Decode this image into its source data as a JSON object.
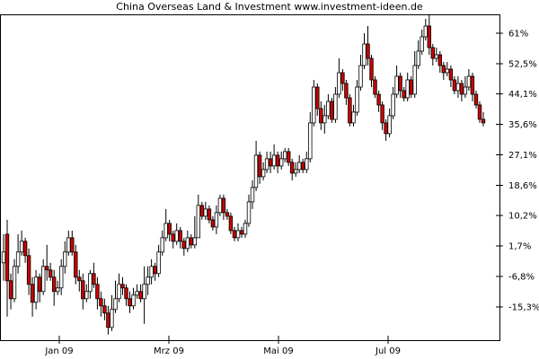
{
  "chart_data": {
    "type": "candlestick",
    "title": "China Overseas Land & Investment www.investment-ideen.de",
    "xlabel": "",
    "ylabel": "",
    "x_ticks": [
      "Jan 09",
      "Mrz 09",
      "Mai 09",
      "Jul 09"
    ],
    "y_ticks": [
      "61%",
      "52,5%",
      "44,1%",
      "35,6%",
      "27,1%",
      "18,6%",
      "10,2%",
      "1,7%",
      "-6,8%",
      "-15,3%"
    ],
    "y_tick_values": [
      61,
      52.5,
      44.1,
      35.6,
      27.1,
      18.6,
      10.2,
      1.7,
      -6.8,
      -15.3
    ],
    "ylim": [
      -23.5,
      66.5
    ],
    "grid": false,
    "series_colors": {
      "down": "#cc0000",
      "up": "#ffffff",
      "outline": "#000000"
    },
    "candles": [
      [
        0.0,
        -3.0,
        5.0,
        -8.0,
        true
      ],
      [
        5.0,
        -8.0,
        9.0,
        -18.0,
        false
      ],
      [
        -8.0,
        -13.0,
        -6.0,
        -16.0,
        false
      ],
      [
        -13.0,
        -4.0,
        -2.0,
        -14.0,
        true
      ],
      [
        -4.0,
        0.0,
        5.0,
        -6.0,
        true
      ],
      [
        0.0,
        3.0,
        6.0,
        -1.0,
        true
      ],
      [
        3.0,
        -1.0,
        4.0,
        -3.0,
        false
      ],
      [
        -1.0,
        -9.0,
        1.0,
        -12.0,
        false
      ],
      [
        -9.0,
        -14.0,
        -7.0,
        -18.0,
        false
      ],
      [
        -14.0,
        -7.0,
        -5.0,
        -16.0,
        true
      ],
      [
        -7.0,
        -11.0,
        -6.0,
        -14.0,
        false
      ],
      [
        -11.0,
        -4.0,
        -2.0,
        -12.0,
        true
      ],
      [
        -4.0,
        -5.0,
        2.0,
        -8.0,
        false
      ],
      [
        -5.0,
        -7.0,
        -3.0,
        -8.0,
        false
      ],
      [
        -7.0,
        -11.0,
        -5.0,
        -15.0,
        false
      ],
      [
        -11.0,
        -10.0,
        -8.0,
        -12.0,
        true
      ],
      [
        -10.0,
        -4.0,
        -2.0,
        -12.0,
        true
      ],
      [
        -4.0,
        0.0,
        3.0,
        -6.0,
        true
      ],
      [
        0.0,
        4.0,
        6.0,
        -1.0,
        true
      ],
      [
        4.0,
        0.0,
        6.0,
        -1.0,
        false
      ],
      [
        0.0,
        -7.0,
        2.0,
        -9.0,
        false
      ],
      [
        -7.0,
        -8.0,
        -5.0,
        -11.0,
        false
      ],
      [
        -8.0,
        -13.0,
        -6.0,
        -16.0,
        false
      ],
      [
        -13.0,
        -11.0,
        -9.0,
        -14.0,
        true
      ],
      [
        -11.0,
        -6.0,
        -5.0,
        -13.0,
        true
      ],
      [
        -6.0,
        -9.0,
        -3.0,
        -10.0,
        false
      ],
      [
        -9.0,
        -13.0,
        -7.0,
        -16.0,
        false
      ],
      [
        -13.0,
        -15.0,
        -11.0,
        -18.0,
        false
      ],
      [
        -15.0,
        -17.0,
        -13.0,
        -19.0,
        false
      ],
      [
        -17.0,
        -21.0,
        -15.0,
        -23.0,
        false
      ],
      [
        -21.0,
        -16.0,
        -12.0,
        -22.0,
        true
      ],
      [
        -16.0,
        -13.0,
        -8.0,
        -17.0,
        true
      ],
      [
        -13.0,
        -9.0,
        -6.0,
        -14.0,
        true
      ],
      [
        -9.0,
        -10.0,
        -7.0,
        -12.0,
        false
      ],
      [
        -10.0,
        -13.0,
        -9.0,
        -15.0,
        false
      ],
      [
        -13.0,
        -15.0,
        -11.0,
        -17.0,
        false
      ],
      [
        -15.0,
        -12.0,
        -10.0,
        -16.0,
        true
      ],
      [
        -12.0,
        -11.0,
        -9.0,
        -13.0,
        true
      ],
      [
        -11.0,
        -13.0,
        -9.0,
        -14.0,
        false
      ],
      [
        -13.0,
        -9.0,
        -4.0,
        -20.0,
        true
      ],
      [
        -9.0,
        -7.0,
        -4.0,
        -12.0,
        true
      ],
      [
        -7.0,
        -4.0,
        -2.0,
        -9.0,
        true
      ],
      [
        -4.0,
        -6.0,
        -3.0,
        -8.0,
        false
      ],
      [
        -6.0,
        0.0,
        2.0,
        -7.0,
        true
      ],
      [
        0.0,
        4.0,
        6.0,
        -1.0,
        true
      ],
      [
        4.0,
        8.0,
        12.0,
        3.0,
        true
      ],
      [
        8.0,
        5.0,
        9.0,
        3.0,
        false
      ],
      [
        5.0,
        3.0,
        6.0,
        1.0,
        false
      ],
      [
        3.0,
        6.0,
        8.0,
        2.0,
        true
      ],
      [
        6.0,
        3.0,
        7.0,
        1.0,
        false
      ],
      [
        3.0,
        1.0,
        4.0,
        -1.0,
        false
      ],
      [
        1.0,
        4.0,
        6.0,
        0.0,
        true
      ],
      [
        4.0,
        2.0,
        5.0,
        1.0,
        false
      ],
      [
        2.0,
        4.0,
        10.0,
        1.0,
        true
      ],
      [
        4.0,
        13.0,
        16.0,
        4.0,
        true
      ],
      [
        13.0,
        10.0,
        14.0,
        9.0,
        false
      ],
      [
        10.0,
        12.0,
        14.0,
        9.0,
        true
      ],
      [
        12.0,
        9.0,
        13.0,
        8.0,
        false
      ],
      [
        9.0,
        7.0,
        10.0,
        6.0,
        false
      ],
      [
        7.0,
        11.0,
        13.0,
        5.0,
        true
      ],
      [
        11.0,
        15.0,
        16.0,
        10.0,
        true
      ],
      [
        15.0,
        11.0,
        16.0,
        9.0,
        false
      ],
      [
        11.0,
        10.0,
        12.0,
        9.0,
        false
      ],
      [
        10.0,
        6.0,
        11.0,
        5.0,
        false
      ],
      [
        6.0,
        4.0,
        7.0,
        3.0,
        false
      ],
      [
        4.0,
        6.0,
        8.0,
        3.0,
        true
      ],
      [
        6.0,
        5.0,
        7.0,
        4.0,
        false
      ],
      [
        5.0,
        8.0,
        9.0,
        4.0,
        true
      ],
      [
        8.0,
        14.0,
        16.0,
        7.0,
        true
      ],
      [
        14.0,
        18.0,
        20.0,
        12.0,
        true
      ],
      [
        18.0,
        27.0,
        31.0,
        17.0,
        true
      ],
      [
        27.0,
        21.0,
        28.0,
        19.0,
        false
      ],
      [
        21.0,
        23.0,
        25.0,
        20.0,
        true
      ],
      [
        23.0,
        26.0,
        28.0,
        22.0,
        true
      ],
      [
        26.0,
        24.0,
        28.0,
        22.0,
        false
      ],
      [
        24.0,
        27.0,
        30.0,
        23.0,
        true
      ],
      [
        27.0,
        24.0,
        28.0,
        22.0,
        false
      ],
      [
        24.0,
        26.0,
        28.0,
        23.0,
        true
      ],
      [
        26.0,
        28.0,
        29.0,
        25.0,
        true
      ],
      [
        28.0,
        25.0,
        29.0,
        24.0,
        false
      ],
      [
        25.0,
        22.0,
        26.0,
        20.0,
        false
      ],
      [
        22.0,
        23.0,
        25.0,
        21.0,
        true
      ],
      [
        23.0,
        25.0,
        27.0,
        22.0,
        true
      ],
      [
        25.0,
        23.0,
        26.0,
        22.0,
        false
      ],
      [
        23.0,
        26.0,
        28.0,
        22.0,
        true
      ],
      [
        26.0,
        36.0,
        39.0,
        25.0,
        true
      ],
      [
        36.0,
        46.0,
        48.0,
        35.0,
        true
      ],
      [
        46.0,
        40.0,
        47.0,
        38.0,
        false
      ],
      [
        40.0,
        36.0,
        42.0,
        34.0,
        false
      ],
      [
        36.0,
        38.0,
        41.0,
        33.0,
        true
      ],
      [
        38.0,
        42.0,
        44.0,
        37.0,
        true
      ],
      [
        42.0,
        37.0,
        43.0,
        36.0,
        false
      ],
      [
        37.0,
        44.0,
        46.0,
        36.0,
        true
      ],
      [
        44.0,
        50.0,
        54.0,
        43.0,
        true
      ],
      [
        50.0,
        47.0,
        51.0,
        45.0,
        false
      ],
      [
        47.0,
        43.0,
        48.0,
        41.0,
        false
      ],
      [
        43.0,
        36.0,
        44.0,
        35.0,
        false
      ],
      [
        36.0,
        39.0,
        41.0,
        35.0,
        true
      ],
      [
        39.0,
        46.0,
        48.0,
        38.0,
        true
      ],
      [
        46.0,
        52.0,
        55.0,
        45.0,
        true
      ],
      [
        52.0,
        58.0,
        61.0,
        51.0,
        true
      ],
      [
        58.0,
        54.0,
        63.0,
        52.0,
        false
      ],
      [
        54.0,
        48.0,
        55.0,
        46.0,
        false
      ],
      [
        48.0,
        44.0,
        49.0,
        43.0,
        false
      ],
      [
        44.0,
        41.0,
        45.0,
        39.0,
        false
      ],
      [
        41.0,
        36.0,
        42.0,
        34.0,
        false
      ],
      [
        36.0,
        33.0,
        37.0,
        31.0,
        false
      ],
      [
        33.0,
        38.0,
        40.0,
        32.0,
        true
      ],
      [
        38.0,
        44.0,
        46.0,
        37.0,
        true
      ],
      [
        44.0,
        49.0,
        52.0,
        43.0,
        true
      ],
      [
        49.0,
        45.0,
        50.0,
        43.0,
        false
      ],
      [
        45.0,
        43.0,
        46.0,
        42.0,
        false
      ],
      [
        43.0,
        48.0,
        50.0,
        42.0,
        true
      ],
      [
        48.0,
        44.0,
        49.0,
        43.0,
        false
      ],
      [
        44.0,
        52.0,
        56.0,
        43.0,
        true
      ],
      [
        52.0,
        56.0,
        59.0,
        51.0,
        true
      ],
      [
        56.0,
        60.0,
        62.0,
        55.0,
        true
      ],
      [
        60.0,
        63.0,
        65.0,
        59.0,
        true
      ],
      [
        63.0,
        57.0,
        66.0,
        55.0,
        false
      ],
      [
        57.0,
        54.0,
        58.0,
        52.0,
        false
      ],
      [
        54.0,
        55.0,
        57.0,
        53.0,
        true
      ],
      [
        55.0,
        52.0,
        56.0,
        50.0,
        false
      ],
      [
        52.0,
        50.0,
        53.0,
        48.0,
        false
      ],
      [
        50.0,
        51.0,
        53.0,
        49.0,
        true
      ],
      [
        51.0,
        48.0,
        52.0,
        46.0,
        false
      ],
      [
        48.0,
        45.0,
        49.0,
        44.0,
        false
      ],
      [
        45.0,
        47.0,
        49.0,
        43.0,
        true
      ],
      [
        47.0,
        44.0,
        48.0,
        42.0,
        false
      ],
      [
        44.0,
        46.0,
        49.0,
        43.0,
        true
      ],
      [
        46.0,
        49.0,
        51.0,
        45.0,
        true
      ],
      [
        49.0,
        44.0,
        50.0,
        42.0,
        false
      ],
      [
        44.0,
        41.0,
        45.0,
        40.0,
        false
      ],
      [
        41.0,
        37.0,
        42.0,
        36.0,
        false
      ],
      [
        37.0,
        36.0,
        39.0,
        35.0,
        false
      ]
    ]
  }
}
